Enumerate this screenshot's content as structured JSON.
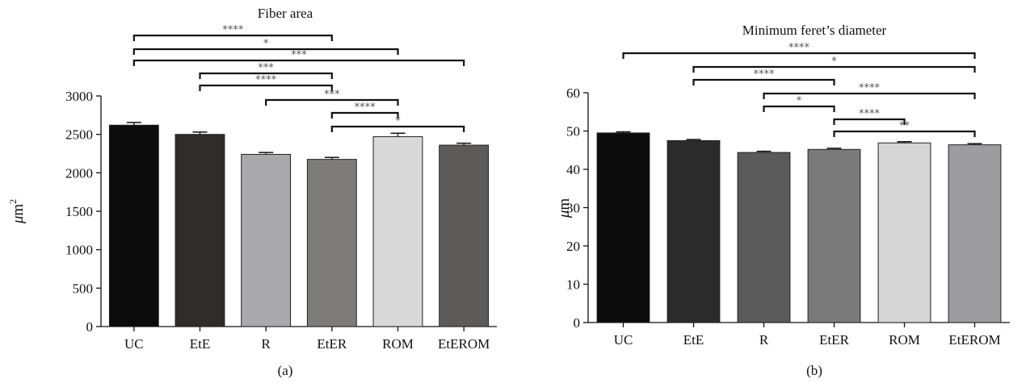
{
  "charts": [
    {
      "title": "Fiber area",
      "caption": "(a)",
      "ylabel": {
        "unit_prefix": "μ",
        "unit_base": "m",
        "unit_exp": "2"
      },
      "chart_data": {
        "type": "bar",
        "categories": [
          "UC",
          "EtE",
          "R",
          "EtER",
          "ROM",
          "EtEROM"
        ],
        "values": [
          2620,
          2500,
          2240,
          2175,
          2470,
          2360
        ],
        "errors": [
          35,
          30,
          25,
          25,
          45,
          25
        ],
        "colors": [
          "#0b0b0b",
          "#2f2c2a",
          "#a9a8ab",
          "#7e7b7b",
          "#d9d9d9",
          "#5e5a5a"
        ],
        "ylim": [
          0,
          3000
        ],
        "yticks": [
          0,
          500,
          1000,
          1500,
          2000,
          2500,
          3000
        ],
        "significance": [
          {
            "from": 0,
            "to": 3,
            "label": "****"
          },
          {
            "from": 0,
            "to": 4,
            "label": "*"
          },
          {
            "from": 0,
            "to": 5,
            "label": "***"
          },
          {
            "from": 1,
            "to": 3,
            "label": "***"
          },
          {
            "from": 1,
            "to": 3,
            "label": "****"
          },
          {
            "from": 2,
            "to": 4,
            "label": "***"
          },
          {
            "from": 3,
            "to": 4,
            "label": "****"
          },
          {
            "from": 3,
            "to": 5,
            "label": "*"
          }
        ]
      }
    },
    {
      "title": "Minimum feret’s diameter",
      "caption": "(b)",
      "ylabel": {
        "unit_prefix": "μ",
        "unit_base": "m",
        "unit_exp": ""
      },
      "chart_data": {
        "type": "bar",
        "categories": [
          "UC",
          "EtE",
          "R",
          "EtER",
          "ROM",
          "EtEROM"
        ],
        "values": [
          49.5,
          47.5,
          44.4,
          45.2,
          46.9,
          46.4
        ],
        "errors": [
          0.3,
          0.3,
          0.3,
          0.3,
          0.3,
          0.3
        ],
        "colors": [
          "#0b0b0b",
          "#2b2b2b",
          "#5a5a5a",
          "#7a7a7a",
          "#d6d6d6",
          "#9d9ca1"
        ],
        "ylim": [
          0,
          60
        ],
        "yticks": [
          0,
          10,
          20,
          30,
          40,
          50,
          60
        ],
        "significance": [
          {
            "from": 0,
            "to": 5,
            "label": "****"
          },
          {
            "from": 1,
            "to": 5,
            "label": "*"
          },
          {
            "from": 1,
            "to": 3,
            "label": "****"
          },
          {
            "from": 2,
            "to": 5,
            "label": "****"
          },
          {
            "from": 2,
            "to": 3,
            "label": "*"
          },
          {
            "from": 3,
            "to": 4,
            "label": "****"
          },
          {
            "from": 3,
            "to": 5,
            "label": "**"
          }
        ]
      }
    }
  ]
}
